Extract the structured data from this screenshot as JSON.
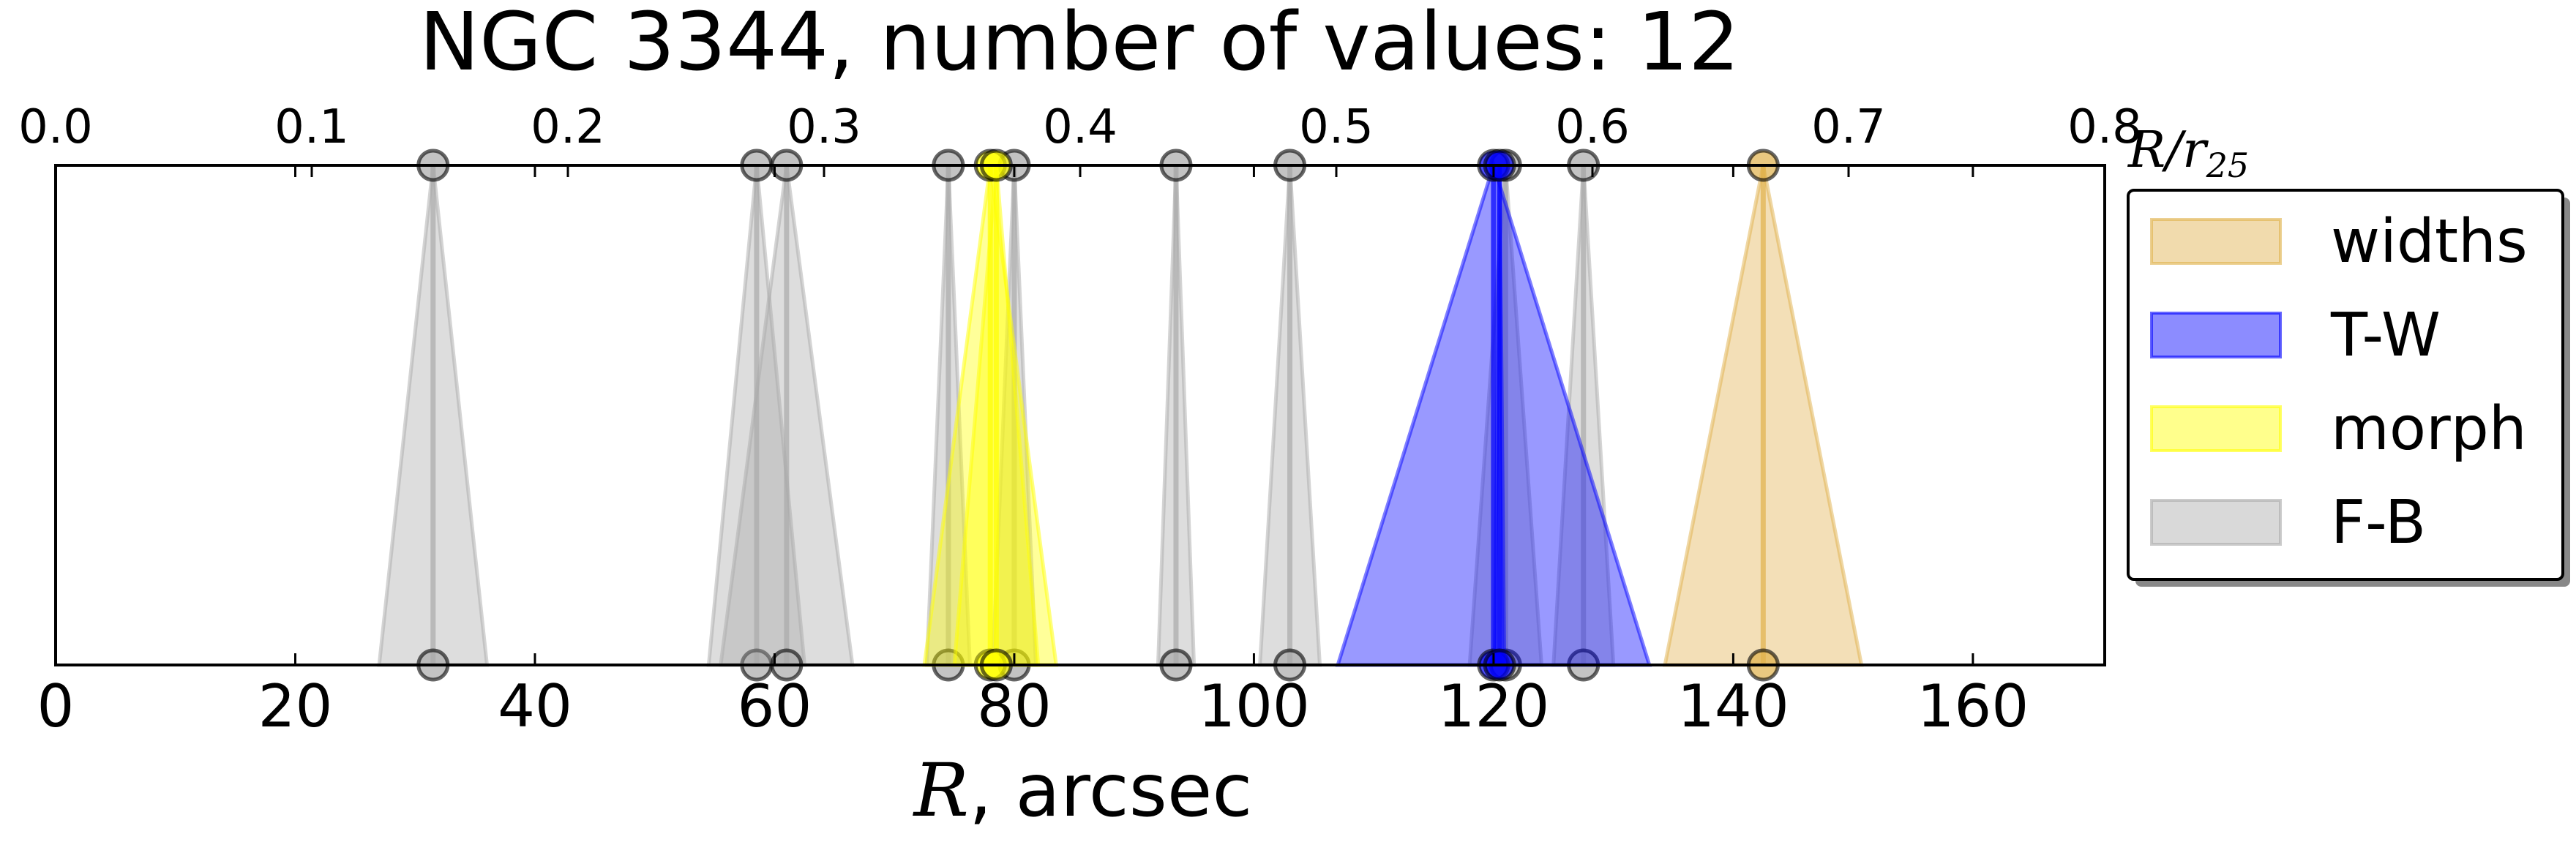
{
  "chart_data": {
    "type": "scatter",
    "title": "NGC 3344, number of values: 12",
    "xlabel_var": "R",
    "xlabel_rest": ", arcsec",
    "x2label_var": "R/r",
    "x2label_sub": "25",
    "xlim": [
      0,
      171
    ],
    "xticks": [
      "0",
      "20",
      "40",
      "60",
      "80",
      "100",
      "120",
      "140",
      "160"
    ],
    "x2lim": [
      0.0,
      0.8
    ],
    "x2ticks": [
      "0.0",
      "0.1",
      "0.2",
      "0.3",
      "0.4",
      "0.5",
      "0.6",
      "0.7",
      "0.8"
    ],
    "legend_position": "right",
    "grid": false,
    "series": [
      {
        "name": "widths",
        "color": "#e0b04a",
        "points": [
          {
            "x": 142.5,
            "width": 8.2
          }
        ]
      },
      {
        "name": "T-W",
        "color": "#0000ff",
        "points": [
          {
            "x": 120.0,
            "width": 13.0
          },
          {
            "x": 120.5,
            "width": 0.4
          }
        ]
      },
      {
        "name": "morph",
        "color": "#ffff00",
        "points": [
          {
            "x": 78.0,
            "width": 5.5
          },
          {
            "x": 78.5,
            "width": 3.5
          }
        ]
      },
      {
        "name": "F-B",
        "color": "#aaaaaa",
        "points": [
          {
            "x": 31.5,
            "width": 4.5
          },
          {
            "x": 58.5,
            "width": 4.0
          },
          {
            "x": 61.0,
            "width": 5.5
          },
          {
            "x": 74.5,
            "width": 1.8
          },
          {
            "x": 80.0,
            "width": 1.8
          },
          {
            "x": 93.5,
            "width": 1.5
          },
          {
            "x": 103.0,
            "width": 2.5
          },
          {
            "x": 121.0,
            "width": 3.0
          },
          {
            "x": 127.5,
            "width": 2.5
          }
        ]
      }
    ]
  }
}
